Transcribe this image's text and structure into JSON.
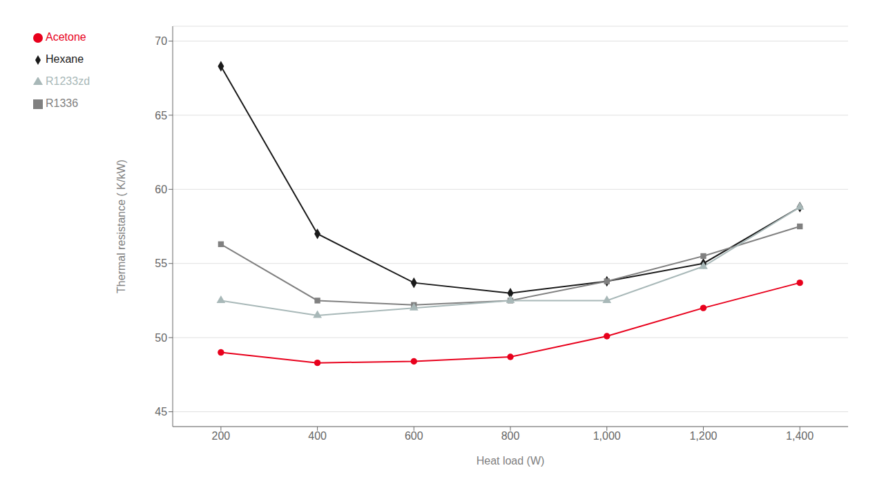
{
  "chart_data": {
    "type": "line",
    "x": [
      200,
      400,
      600,
      800,
      1000,
      1200,
      1400
    ],
    "series": [
      {
        "name": "Acetone",
        "color": "#e8001c",
        "marker": "circle",
        "values": [
          49.0,
          48.3,
          48.4,
          48.7,
          50.1,
          52.0,
          53.7
        ]
      },
      {
        "name": "Hexane",
        "color": "#1a1a1a",
        "marker": "diamond",
        "values": [
          68.3,
          57.0,
          53.7,
          53.0,
          53.8,
          55.0,
          58.8
        ]
      },
      {
        "name": "R1336",
        "color": "#808080",
        "marker": "square",
        "values": [
          56.3,
          52.5,
          52.2,
          52.5,
          53.8,
          55.5,
          57.5
        ]
      },
      {
        "name": "R1233zd",
        "color": "#a8b8b8",
        "marker": "triangle",
        "values": [
          52.5,
          51.5,
          52.0,
          52.5,
          52.5,
          54.8,
          58.8
        ]
      }
    ],
    "xlabel": "Heat load (W)",
    "ylabel": "Thermal resistance ( K/kW)",
    "xlim": [
      100,
      1500
    ],
    "xticks": [
      200,
      400,
      600,
      800,
      {
        "value": 1000,
        "label": "1,000"
      },
      {
        "value": 1200,
        "label": "1,200"
      },
      {
        "value": 1400,
        "label": "1,400"
      }
    ],
    "ylim": [
      44,
      71
    ],
    "yticks": [
      45,
      50,
      55,
      60,
      65,
      70
    ],
    "grid": "y",
    "legend": "upper left"
  }
}
